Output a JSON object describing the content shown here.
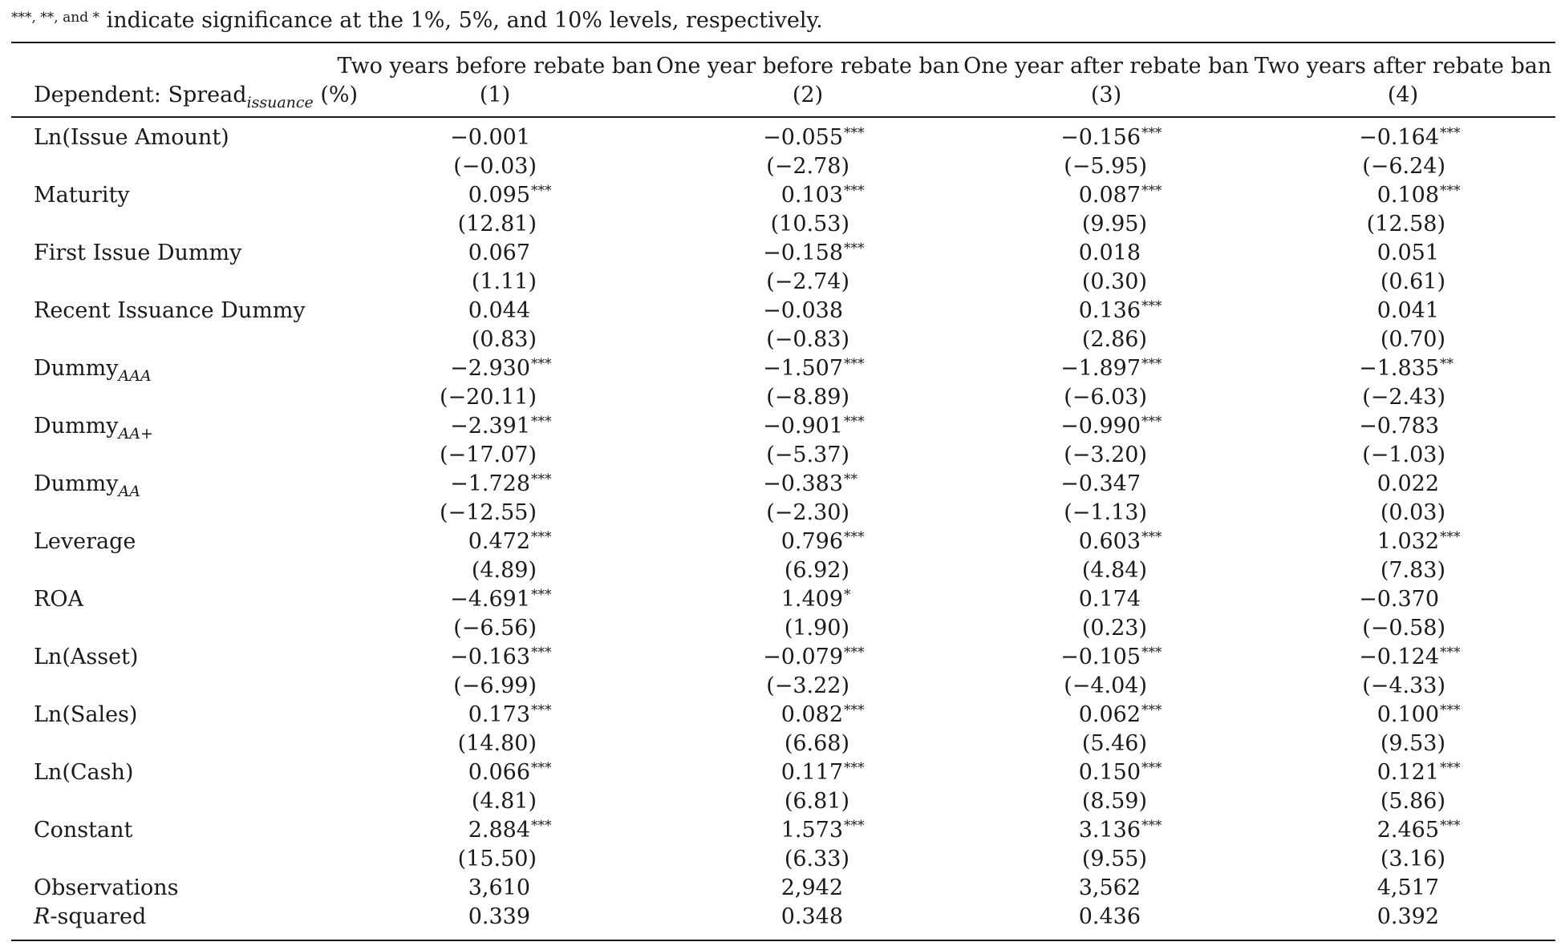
{
  "note": {
    "stars": "***, **, and *",
    "text": " indicate significance at the 1%, 5%, and 10% levels, respectively."
  },
  "header": {
    "dependent_label": "Dependent: Spread",
    "dependent_sub": "issuance",
    "dependent_unit": " (%)",
    "columns": [
      {
        "title": "Two years before rebate ban",
        "number": "(1)"
      },
      {
        "title": "One year before rebate ban",
        "number": "(2)"
      },
      {
        "title": "One year after rebate ban",
        "number": "(3)"
      },
      {
        "title": "Two years after rebate ban",
        "number": "(4)"
      }
    ]
  },
  "rows": [
    {
      "label": "Ln(Issue Amount)",
      "coef": [
        [
          "−0.001",
          ""
        ],
        [
          "−0.055",
          "***"
        ],
        [
          "−0.156",
          "***"
        ],
        [
          "−0.164",
          "***"
        ]
      ],
      "t": [
        "(−0.03)",
        "(−2.78)",
        "(−5.95)",
        "(−6.24)"
      ]
    },
    {
      "label": "Maturity",
      "coef": [
        [
          "0.095",
          "***"
        ],
        [
          "0.103",
          "***"
        ],
        [
          "0.087",
          "***"
        ],
        [
          "0.108",
          "***"
        ]
      ],
      "t": [
        "(12.81)",
        "(10.53)",
        "(9.95)",
        "(12.58)"
      ]
    },
    {
      "label": "First Issue Dummy",
      "coef": [
        [
          "0.067",
          ""
        ],
        [
          "−0.158",
          "***"
        ],
        [
          "0.018",
          ""
        ],
        [
          "0.051",
          ""
        ]
      ],
      "t": [
        "(1.11)",
        "(−2.74)",
        "(0.30)",
        "(0.61)"
      ]
    },
    {
      "label": "Recent Issuance Dummy",
      "coef": [
        [
          "0.044",
          ""
        ],
        [
          "−0.038",
          ""
        ],
        [
          "0.136",
          "***"
        ],
        [
          "0.041",
          ""
        ]
      ],
      "t": [
        "(0.83)",
        "(−0.83)",
        "(2.86)",
        "(0.70)"
      ]
    },
    {
      "label": "Dummy",
      "sub": "AAA",
      "coef": [
        [
          "−2.930",
          "***"
        ],
        [
          "−1.507",
          "***"
        ],
        [
          "−1.897",
          "***"
        ],
        [
          "−1.835",
          "**"
        ]
      ],
      "t": [
        "(−20.11)",
        "(−8.89)",
        "(−6.03)",
        "(−2.43)"
      ]
    },
    {
      "label": "Dummy",
      "sub": "AA+",
      "coef": [
        [
          "−2.391",
          "***"
        ],
        [
          "−0.901",
          "***"
        ],
        [
          "−0.990",
          "***"
        ],
        [
          "−0.783",
          ""
        ]
      ],
      "t": [
        "(−17.07)",
        "(−5.37)",
        "(−3.20)",
        "(−1.03)"
      ]
    },
    {
      "label": "Dummy",
      "sub": "AA",
      "coef": [
        [
          "−1.728",
          "***"
        ],
        [
          "−0.383",
          "**"
        ],
        [
          "−0.347",
          ""
        ],
        [
          "0.022",
          ""
        ]
      ],
      "t": [
        "(−12.55)",
        "(−2.30)",
        "(−1.13)",
        "(0.03)"
      ]
    },
    {
      "label": "Leverage",
      "coef": [
        [
          "0.472",
          "***"
        ],
        [
          "0.796",
          "***"
        ],
        [
          "0.603",
          "***"
        ],
        [
          "1.032",
          "***"
        ]
      ],
      "t": [
        "(4.89)",
        "(6.92)",
        "(4.84)",
        "(7.83)"
      ]
    },
    {
      "label": "ROA",
      "coef": [
        [
          "−4.691",
          "***"
        ],
        [
          "1.409",
          "*"
        ],
        [
          "0.174",
          ""
        ],
        [
          "−0.370",
          ""
        ]
      ],
      "t": [
        "(−6.56)",
        "(1.90)",
        "(0.23)",
        "(−0.58)"
      ]
    },
    {
      "label": "Ln(Asset)",
      "coef": [
        [
          "−0.163",
          "***"
        ],
        [
          "−0.079",
          "***"
        ],
        [
          "−0.105",
          "***"
        ],
        [
          "−0.124",
          "***"
        ]
      ],
      "t": [
        "(−6.99)",
        "(−3.22)",
        "(−4.04)",
        "(−4.33)"
      ]
    },
    {
      "label": "Ln(Sales)",
      "coef": [
        [
          "0.173",
          "***"
        ],
        [
          "0.082",
          "***"
        ],
        [
          "0.062",
          "***"
        ],
        [
          "0.100",
          "***"
        ]
      ],
      "t": [
        "(14.80)",
        "(6.68)",
        "(5.46)",
        "(9.53)"
      ]
    },
    {
      "label": "Ln(Cash)",
      "coef": [
        [
          "0.066",
          "***"
        ],
        [
          "0.117",
          "***"
        ],
        [
          "0.150",
          "***"
        ],
        [
          "0.121",
          "***"
        ]
      ],
      "t": [
        "(4.81)",
        "(6.81)",
        "(8.59)",
        "(5.86)"
      ]
    },
    {
      "label": "Constant",
      "coef": [
        [
          "2.884",
          "***"
        ],
        [
          "1.573",
          "***"
        ],
        [
          "3.136",
          "***"
        ],
        [
          "2.465",
          "***"
        ]
      ],
      "t": [
        "(15.50)",
        "(6.33)",
        "(9.55)",
        "(3.16)"
      ]
    }
  ],
  "stats": [
    {
      "label": "Observations",
      "values": [
        "3,610",
        "2,942",
        "3,562",
        "4,517"
      ]
    },
    {
      "label_italic": "R",
      "label": "-squared",
      "values": [
        "0.339",
        "0.348",
        "0.436",
        "0.392"
      ]
    }
  ]
}
